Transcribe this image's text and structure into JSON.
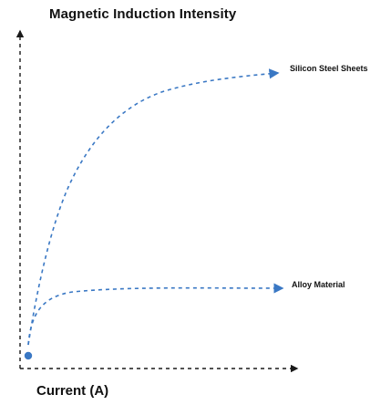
{
  "title": "Magnetic Induction Intensity",
  "x_axis_label": "Current (A)",
  "curves": [
    {
      "id": "silicon",
      "label": "Silicon Steel Sheets"
    },
    {
      "id": "alloy",
      "label": "Alloy Material"
    }
  ],
  "colors": {
    "curve": "#3a78c4",
    "axis": "#1a1a1a",
    "origin_dot": "#3a78c4",
    "text": "#111111"
  }
}
